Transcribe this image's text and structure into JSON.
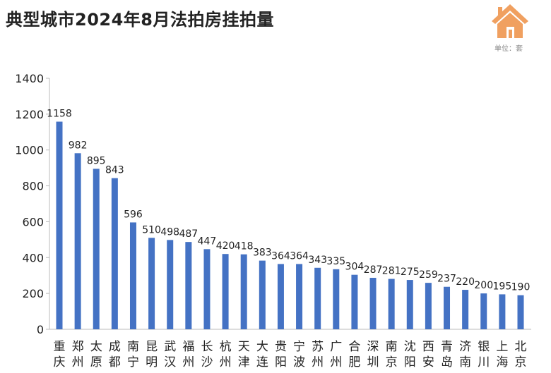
{
  "title": "典型城市2024年8月法拍房挂拍量",
  "unit_label": "单位：套",
  "logo_icon": "house-icon",
  "colors": {
    "bar": "#4472C4",
    "logo": "#F0A060"
  },
  "chart_data": {
    "type": "bar",
    "title": "典型城市2024年8月法拍房挂拍量",
    "xlabel": "",
    "ylabel": "",
    "ylim": [
      0,
      1400
    ],
    "yticks": [
      0,
      200,
      400,
      600,
      800,
      1000,
      1200,
      1400
    ],
    "grid": false,
    "legend": "none",
    "categories": [
      "重庆",
      "郑州",
      "太原",
      "成都",
      "南宁",
      "昆明",
      "武汉",
      "福州",
      "长沙",
      "杭州",
      "天津",
      "大连",
      "贵阳",
      "宁波",
      "苏州",
      "广州",
      "合肥",
      "深圳",
      "南京",
      "沈阳",
      "西安",
      "青岛",
      "济南",
      "银川",
      "上海",
      "北京"
    ],
    "values": [
      1158,
      982,
      895,
      843,
      596,
      510,
      498,
      487,
      447,
      420,
      418,
      383,
      364,
      364,
      343,
      335,
      304,
      287,
      281,
      275,
      259,
      237,
      220,
      200,
      195,
      190
    ]
  }
}
